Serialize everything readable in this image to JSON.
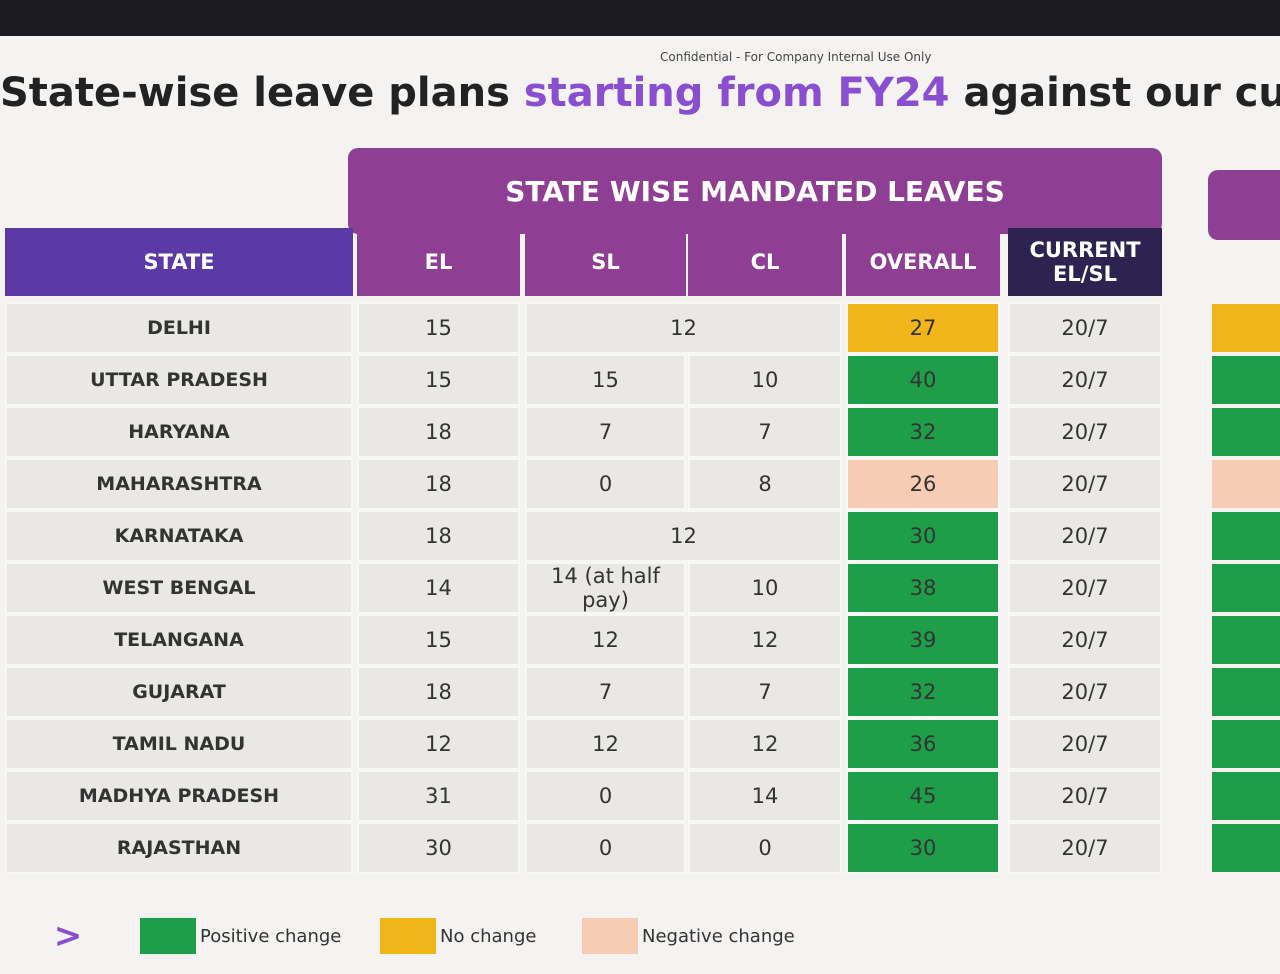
{
  "header": {
    "confidential": "Confidential - For Company Internal Use Only",
    "title_start": "State-wise leave plans",
    "title_highlight": "starting from FY24",
    "title_end": "against our cu"
  },
  "table": {
    "group_header": "STATE WISE MANDATED LEAVES",
    "columns": [
      "STATE",
      "EL",
      "SL",
      "CL",
      "OVERALL",
      "CURRENT EL/SL"
    ],
    "rows": [
      {
        "state": "DELHI",
        "el": "15",
        "sl_cl": "12",
        "overall": "27",
        "current": "20/7",
        "color": "#f2b61c"
      },
      {
        "state": "UTTAR PRADESH",
        "el": "15",
        "sl": "15",
        "cl": "10",
        "overall": "40",
        "current": "20/7",
        "color": "#1f9e4a"
      },
      {
        "state": "HARYANA",
        "el": "18",
        "sl": "7",
        "cl": "7",
        "overall": "32",
        "current": "20/7",
        "color": "#1f9e4a"
      },
      {
        "state": "MAHARASHTRA",
        "el": "18",
        "sl": "0",
        "cl": "8",
        "overall": "26",
        "current": "20/7",
        "color": "#f6cdb3"
      },
      {
        "state": "KARNATAKA",
        "el": "18",
        "sl_cl": "12",
        "overall": "30",
        "current": "20/7",
        "color": "#1f9e4a"
      },
      {
        "state": "WEST BENGAL",
        "el": "14",
        "sl": "14 (at half pay)",
        "cl": "10",
        "overall": "38",
        "current": "20/7",
        "color": "#1f9e4a"
      },
      {
        "state": "TELANGANA",
        "el": "15",
        "sl": "12",
        "cl": "12",
        "overall": "39",
        "current": "20/7",
        "color": "#1f9e4a"
      },
      {
        "state": "GUJARAT",
        "el": "18",
        "sl": "7",
        "cl": "7",
        "overall": "32",
        "current": "20/7",
        "color": "#1f9e4a"
      },
      {
        "state": "TAMIL NADU",
        "el": "12",
        "sl": "12",
        "cl": "12",
        "overall": "36",
        "current": "20/7",
        "color": "#1f9e4a"
      },
      {
        "state": "MADHYA PRADESH",
        "el": "31",
        "sl": "0",
        "cl": "14",
        "overall": "45",
        "current": "20/7",
        "color": "#1f9e4a"
      },
      {
        "state": "RAJASTHAN",
        "el": "30",
        "sl": "0",
        "cl": "0",
        "overall": "30",
        "current": "20/7",
        "color": "#1f9e4a"
      }
    ]
  },
  "legend": [
    {
      "label": "Positive change",
      "color": "#1f9e4a"
    },
    {
      "label": "No change",
      "color": "#f2b61c"
    },
    {
      "label": "Negative change",
      "color": "#f6cdb3"
    }
  ]
}
